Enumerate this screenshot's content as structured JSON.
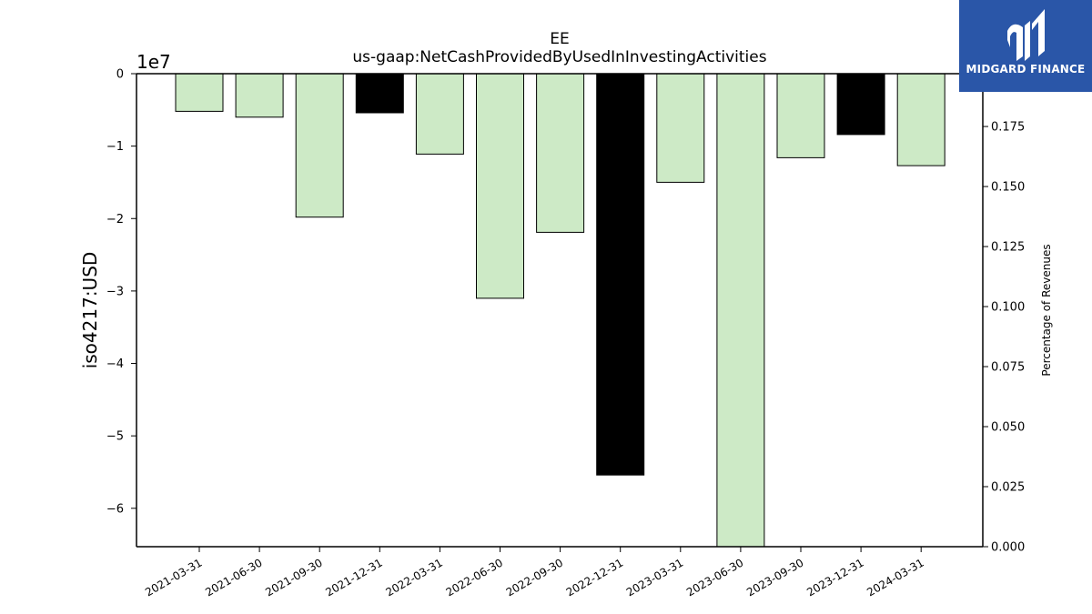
{
  "chart_data": {
    "type": "bar",
    "title": "EE",
    "subtitle": "us-gaap:NetCashProvidedByUsedInInvestingActivities",
    "ylabel": "iso4217:USD",
    "y2label": "Percentage of Revenues",
    "y_offset_label": "1e7",
    "categories": [
      "2021-03-31",
      "2021-06-30",
      "2021-09-30",
      "2021-12-31",
      "2022-03-31",
      "2022-06-30",
      "2022-09-30",
      "2022-12-31",
      "2023-03-31",
      "2023-06-30",
      "2023-09-30",
      "2023-12-31",
      "2024-03-31"
    ],
    "values": [
      -5200000,
      -6000000,
      -19800000,
      -5400000,
      -11100000,
      -31000000,
      -21900000,
      -55400000,
      -15000000,
      -65500000,
      -11600000,
      -8400000,
      -12700000
    ],
    "highlight": [
      false,
      false,
      false,
      true,
      false,
      false,
      false,
      true,
      false,
      false,
      false,
      true,
      false
    ],
    "colors": {
      "normal": "#cdeac6",
      "highlight": "#000000",
      "edge": "#000000"
    },
    "ylim": [
      -65300000,
      0
    ],
    "yticks": [
      0,
      -10000000,
      -20000000,
      -30000000,
      -40000000,
      -50000000,
      -60000000
    ],
    "ytick_labels": [
      "0",
      "−1",
      "−2",
      "−3",
      "−4",
      "−5",
      "−6"
    ],
    "y2lim": [
      0,
      0.197
    ],
    "y2ticks": [
      0.0,
      0.025,
      0.05,
      0.075,
      0.1,
      0.125,
      0.15,
      0.175
    ],
    "y2tick_labels": [
      "0.000",
      "0.025",
      "0.050",
      "0.075",
      "0.100",
      "0.125",
      "0.150",
      "0.175"
    ],
    "grid": false
  },
  "logo": {
    "text": "MIDGARD FINANCE",
    "background": "#2a56a8",
    "icon": "midgard-logo-icon"
  }
}
